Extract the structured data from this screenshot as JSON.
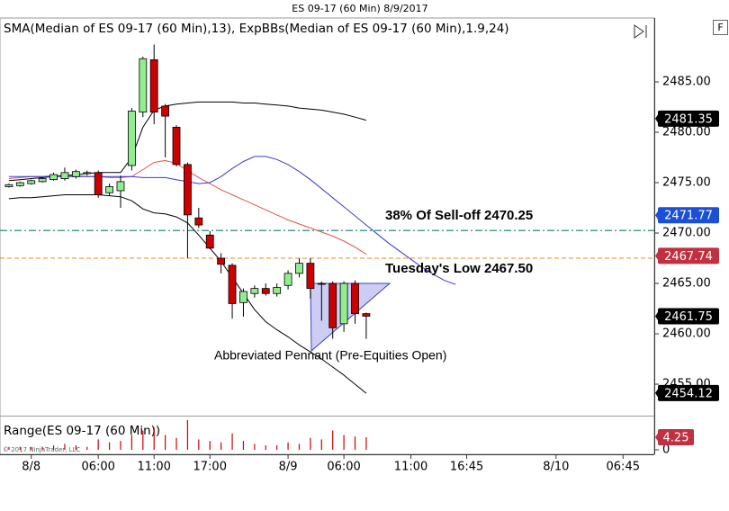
{
  "window_title": "ES 09-17 (60 Min)  8/9/2017",
  "pane_button": "F",
  "copyright": "© 2017 NinjaTrader, LLC",
  "chart_data": [
    {
      "type": "candlestick",
      "title": "SMA(Median of ES 09-17 (60 Min),13), ExpBBs(Median of ES 09-17 (60 Min),1.9,24)",
      "open": [
        2474.6,
        2474.7,
        2474.9,
        2475.1,
        2475.3,
        2475.4,
        2475.6,
        2475.9,
        2476.0,
        2474.0,
        2474.2,
        2476.7,
        2482.0,
        2487.2,
        2482.6,
        2480.5,
        2476.8,
        2471.5,
        2469.8,
        2467.5,
        2466.8,
        2463.1,
        2464.0,
        2464.5,
        2464.0,
        2464.8,
        2466.0,
        2467.0,
        2465.0,
        2465.0,
        2461.0,
        2465.0,
        2462.0
      ],
      "high": [
        2474.9,
        2475.1,
        2475.3,
        2475.5,
        2476.0,
        2476.5,
        2476.3,
        2476.2,
        2476.2,
        2474.9,
        2475.7,
        2482.4,
        2487.5,
        2488.7,
        2482.8,
        2480.7,
        2477.0,
        2472.5,
        2470.2,
        2468.0,
        2467.0,
        2464.5,
        2464.8,
        2465.0,
        2465.0,
        2466.3,
        2467.5,
        2467.5,
        2465.2,
        2465.2,
        2465.2,
        2465.3,
        2462.1
      ],
      "low": [
        2474.5,
        2474.6,
        2474.8,
        2475.0,
        2475.2,
        2475.2,
        2475.4,
        2475.7,
        2473.5,
        2473.7,
        2472.5,
        2476.2,
        2481.5,
        2480.8,
        2477.5,
        2476.6,
        2467.5,
        2470.5,
        2468.4,
        2466.0,
        2461.5,
        2461.7,
        2463.6,
        2463.8,
        2463.7,
        2464.4,
        2465.6,
        2463.5,
        2461.3,
        2459.5,
        2460.2,
        2461.0,
        2459.5
      ],
      "close": [
        2474.8,
        2475.0,
        2475.2,
        2475.4,
        2475.8,
        2476.0,
        2476.1,
        2476.0,
        2473.8,
        2474.6,
        2475.1,
        2482.1,
        2487.3,
        2482.0,
        2481.6,
        2476.8,
        2471.8,
        2470.8,
        2468.5,
        2466.9,
        2463.0,
        2464.2,
        2464.5,
        2464.0,
        2464.6,
        2466.0,
        2467.0,
        2464.5,
        2465.0,
        2460.6,
        2465.0,
        2462.0,
        2461.75
      ],
      "up_color": "#90ee90",
      "down_color": "#cc0000",
      "overlays": [
        {
          "color": "#e05050",
          "values": [
            2475.4,
            2475.5,
            2475.6,
            2475.6,
            2475.7,
            2475.7,
            2475.7,
            2475.6,
            2475.6,
            2475.5,
            2475.5,
            2475.6,
            2476.3,
            2477.0,
            2477.2,
            2476.9,
            2476.2,
            2475.5,
            2474.9,
            2474.3,
            2473.8,
            2473.3,
            2472.8,
            2472.3,
            2471.8,
            2471.3,
            2470.9,
            2470.5,
            2470.1,
            2469.7,
            2469.2,
            2468.6,
            2467.9,
            null,
            null,
            null,
            null,
            null,
            null,
            null,
            null
          ]
        },
        {
          "color": "#000000",
          "values": [
            2475.2,
            2475.3,
            2475.4,
            2475.5,
            2475.6,
            2475.7,
            2475.8,
            2475.9,
            2476.0,
            2476.0,
            2476.0,
            2477.5,
            2480.5,
            2482.2,
            2482.6,
            2482.8,
            2482.9,
            2483.0,
            2483.0,
            2483.0,
            2483.0,
            2482.9,
            2482.9,
            2482.8,
            2482.7,
            2482.6,
            2482.4,
            2482.3,
            2482.2,
            2482.0,
            2481.8,
            2481.5,
            2481.2,
            null,
            null,
            null,
            null,
            null,
            null,
            null,
            null
          ]
        },
        {
          "color": "#000000",
          "values": [
            2473.4,
            2473.5,
            2473.5,
            2473.6,
            2473.7,
            2473.8,
            2473.8,
            2473.8,
            2473.8,
            2473.7,
            2473.6,
            2473.2,
            2472.4,
            2472.0,
            2471.9,
            2471.6,
            2471.0,
            2469.8,
            2468.5,
            2467.2,
            2465.6,
            2464.0,
            2462.4,
            2461.2,
            2460.4,
            2459.7,
            2458.9,
            2458.2,
            2457.5,
            2456.7,
            2455.9,
            2455.0,
            2454.1,
            null,
            null,
            null,
            null,
            null,
            null,
            null,
            null
          ]
        },
        {
          "color": "#3a3ad0",
          "values": [
            2475.6,
            2475.6,
            2475.6,
            2475.6,
            2475.6,
            2475.6,
            2475.6,
            2475.6,
            2475.6,
            2475.6,
            2475.6,
            2475.6,
            2475.5,
            2475.5,
            2475.5,
            2475.3,
            2475.1,
            2474.9,
            2475.0,
            2475.6,
            2476.4,
            2477.1,
            2477.6,
            2477.6,
            2477.3,
            2476.8,
            2476.1,
            2475.3,
            2474.4,
            2473.5,
            2472.6,
            2471.7,
            2470.8,
            2469.9,
            2469.0,
            2468.2,
            2467.4,
            2466.6,
            2465.9,
            2465.3,
            2464.9
          ]
        }
      ],
      "hlines": [
        {
          "value": 2470.25,
          "color": "#2e8b7a",
          "dash": "8 3 2 3"
        },
        {
          "value": 2467.5,
          "color": "#f0a050",
          "dash": "5 3"
        }
      ],
      "annotations": [
        "38% Of Sell-off 2470.25",
        "Tuesday's Low 2467.50",
        "Abbreviated Pennant (Pre-Equities Open)"
      ],
      "price_markers": [
        {
          "value": 2481.35,
          "color": "#000000"
        },
        {
          "value": 2471.77,
          "color": "#1a4fd6"
        },
        {
          "value": 2467.74,
          "color": "#c03040"
        },
        {
          "value": 2461.75,
          "color": "#000000"
        },
        {
          "value": 2454.12,
          "color": "#000000"
        }
      ],
      "xlim": [
        -0.8,
        57.8
      ],
      "xticks": [
        {
          "value": 2,
          "label": "8/8"
        },
        {
          "value": 8,
          "label": "06:00"
        },
        {
          "value": 13,
          "label": "11:00"
        },
        {
          "value": 18,
          "label": "17:00"
        },
        {
          "value": 25,
          "label": "8/9"
        },
        {
          "value": 30,
          "label": "06:00"
        },
        {
          "value": 36,
          "label": "11:00"
        },
        {
          "value": 41,
          "label": "16:45"
        },
        {
          "value": 49,
          "label": "8/10"
        },
        {
          "value": 55,
          "label": "06:45"
        }
      ],
      "ylim": [
        2451.88,
        2491.34
      ],
      "yticks": [
        {
          "value": 2455,
          "label": "2455.00"
        },
        {
          "value": 2460,
          "label": "2460.00"
        },
        {
          "value": 2465,
          "label": "2465.00"
        },
        {
          "value": 2470,
          "label": "2470.00"
        },
        {
          "value": 2475,
          "label": "2475.00"
        },
        {
          "value": 2480,
          "label": "2480.00"
        },
        {
          "value": 2485,
          "label": "2485.00"
        }
      ],
      "grid": false
    },
    {
      "type": "bar",
      "title": "Range(ES 09-17 (60 Min))",
      "values": [
        1,
        1,
        1,
        1,
        1.5,
        2,
        1.5,
        1,
        3.5,
        2.5,
        3,
        5,
        6.5,
        7.5,
        5,
        4,
        10,
        3.5,
        3,
        2.5,
        5.5,
        3,
        2,
        1.5,
        1.5,
        2.5,
        2,
        4,
        3.5,
        6.5,
        5,
        4.5,
        4.25
      ],
      "color": "#cc0000",
      "price_markers": [
        {
          "value": 4.25,
          "color": "#c03040"
        }
      ],
      "ylim": [
        0,
        11.2
      ],
      "yticks": [
        0
      ],
      "grid": false
    }
  ]
}
